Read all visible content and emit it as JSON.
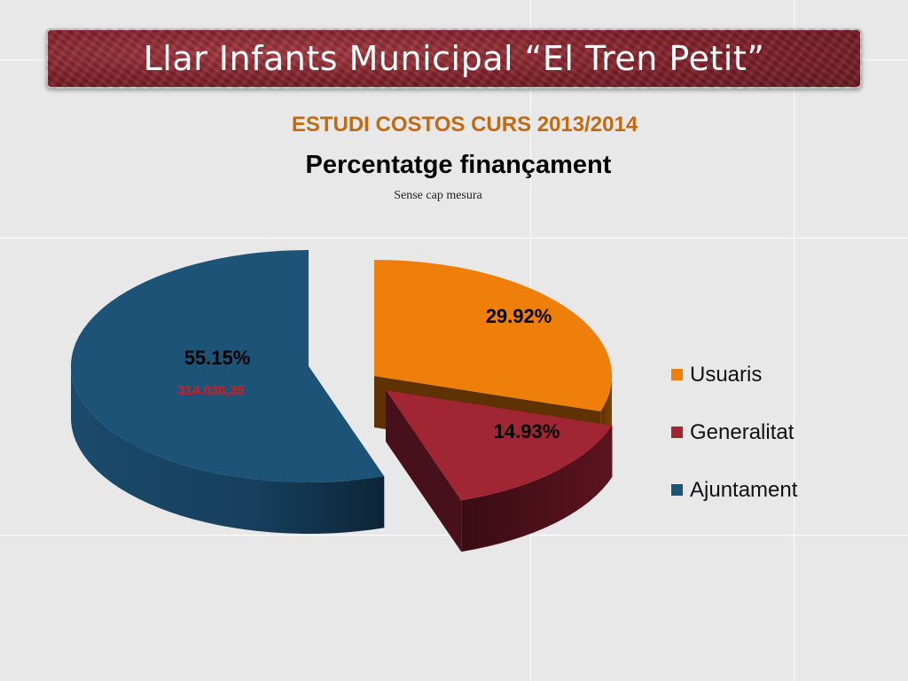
{
  "slide": {
    "title": "Llar Infants Municipal “El Tren Petit”",
    "heading": "ESTUDI COSTOS CURS 2013/2014",
    "subheading": "Percentatge finançament",
    "caption": "Sense cap mesura"
  },
  "chart_data": {
    "type": "pie",
    "title": "Percentatge finançament",
    "style": "3d-exploded",
    "legend_position": "right",
    "slices": [
      {
        "name": "Usuaris",
        "value": 29.92,
        "label": "29.92%",
        "color": "#ee7f0b",
        "side_color": "#5e3202"
      },
      {
        "name": "Generalitat",
        "value": 14.93,
        "label": "14.93%",
        "color": "#a12633",
        "side_color": "#48101a"
      },
      {
        "name": "Ajuntament",
        "value": 55.15,
        "label": "55.15%",
        "extra_label": "314.036,35",
        "color": "#1e5378",
        "side_color": "#12344c"
      }
    ]
  }
}
